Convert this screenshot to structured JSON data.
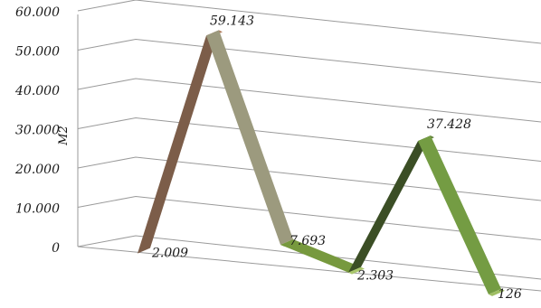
{
  "chart_data": {
    "type": "line",
    "style": "3d-ribbon",
    "values": [
      2009,
      59143,
      7693,
      2303,
      37428,
      126
    ],
    "data_labels": [
      "2.009",
      "59.143",
      "7.693",
      "2.303",
      "37.428",
      "126"
    ],
    "ylabel": "M2",
    "ylim": [
      0,
      60000
    ],
    "yticks": [
      "0",
      "10.000",
      "20.000",
      "30.000",
      "40.000",
      "50.000",
      "60.000"
    ],
    "grid": true,
    "legend": "none",
    "segment_colors": [
      "#7c5d49",
      "#9c9a7e",
      "#77993e",
      "#3b4e25",
      "#749c43"
    ],
    "segment_side_colors": [
      "#b07d5d",
      "#cfcdaa",
      "#a9c66c",
      "#5c7a37",
      "#9fbe63"
    ]
  }
}
